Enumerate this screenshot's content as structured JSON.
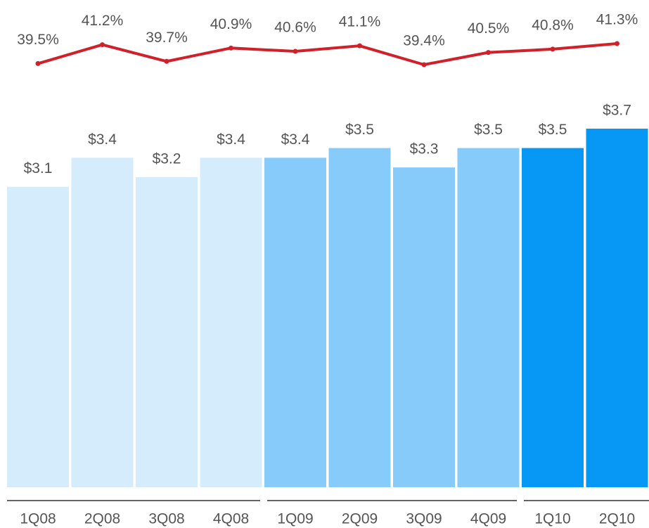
{
  "chart_data": {
    "type": "combo",
    "categories": [
      "1Q08",
      "2Q08",
      "3Q08",
      "4Q08",
      "1Q09",
      "2Q09",
      "3Q09",
      "4Q09",
      "1Q10",
      "2Q10"
    ],
    "bars": {
      "values": [
        3.1,
        3.4,
        3.2,
        3.4,
        3.4,
        3.5,
        3.3,
        3.5,
        3.5,
        3.7
      ],
      "value_labels": [
        "$3.1",
        "$3.4",
        "$3.2",
        "$3.4",
        "$3.4",
        "$3.5",
        "$3.3",
        "$3.5",
        "$3.5",
        "$3.7"
      ],
      "colors": [
        "#d4ecfb",
        "#d4ecfb",
        "#d4ecfb",
        "#d4ecfb",
        "#87cbfb",
        "#87cbfb",
        "#87cbfb",
        "#87cbfb",
        "#0797f5",
        "#0797f5"
      ]
    },
    "line": {
      "values": [
        39.5,
        41.2,
        39.7,
        40.9,
        40.6,
        41.1,
        39.4,
        40.5,
        40.8,
        41.3
      ],
      "value_labels": [
        "39.5%",
        "41.2%",
        "39.7%",
        "40.9%",
        "40.6%",
        "41.1%",
        "39.4%",
        "40.5%",
        "40.8%",
        "41.3%"
      ],
      "color": "#d0202a"
    }
  }
}
